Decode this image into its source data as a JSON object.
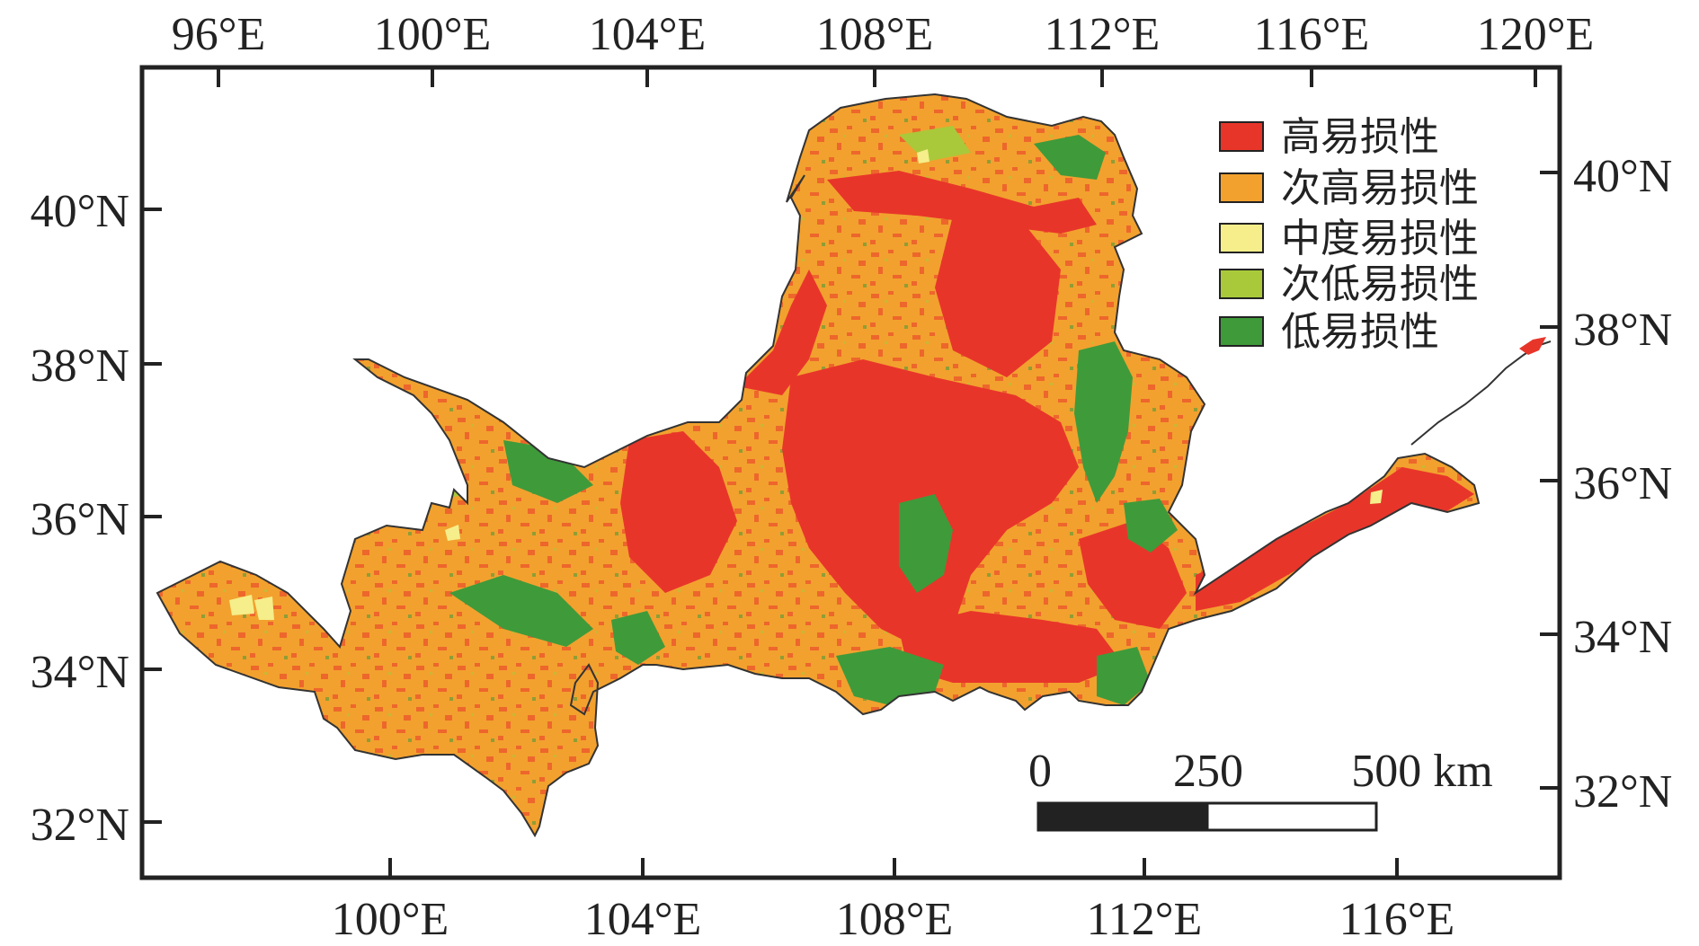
{
  "top_axis_labels": [
    "96°E",
    "100°E",
    "104°E",
    "108°E",
    "112°E",
    "116°E",
    "120°E"
  ],
  "bottom_axis_labels": [
    "100°E",
    "104°E",
    "108°E",
    "112°E",
    "116°E"
  ],
  "left_axis_labels": [
    "40°N",
    "38°N",
    "36°N",
    "34°N",
    "32°N"
  ],
  "right_axis_labels": [
    "40°N",
    "38°N",
    "36°N",
    "34°N",
    "32°N"
  ],
  "legend": {
    "items": [
      {
        "label": "高易损性",
        "color": "#e8352a"
      },
      {
        "label": "次高易损性",
        "color": "#f2a12e"
      },
      {
        "label": "中度易损性",
        "color": "#f5ee8a"
      },
      {
        "label": "次低易损性",
        "color": "#a9c93a"
      },
      {
        "label": "低易损性",
        "color": "#3f9a3a"
      }
    ]
  },
  "scale_bar": {
    "labels": [
      "0",
      "250",
      "500 km"
    ]
  }
}
